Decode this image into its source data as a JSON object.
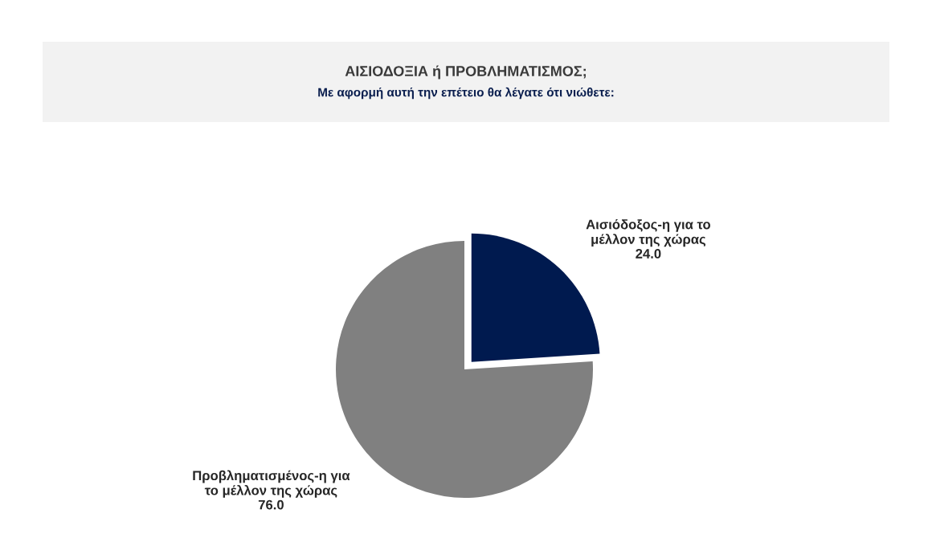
{
  "chart_data": {
    "type": "pie",
    "title": "ΑΙΣΙΟΔΟΞΙΑ ή ΠΡΟΒΛΗΜΑΤΙΣΜΟΣ;",
    "subtitle": "Με αφορμή αυτή την επέτειο θα λέγατε ότι νιώθετε:",
    "categories": [
      "Αισιόδοξος-η για το\nμέλλον της χώρας",
      "Προβληματισμένος-η για\nτο μέλλον της χώρας"
    ],
    "values": [
      24.0,
      76.0
    ],
    "colors": [
      "#001a4f",
      "#808080"
    ],
    "value_labels": [
      "24.0",
      "76.0"
    ]
  }
}
